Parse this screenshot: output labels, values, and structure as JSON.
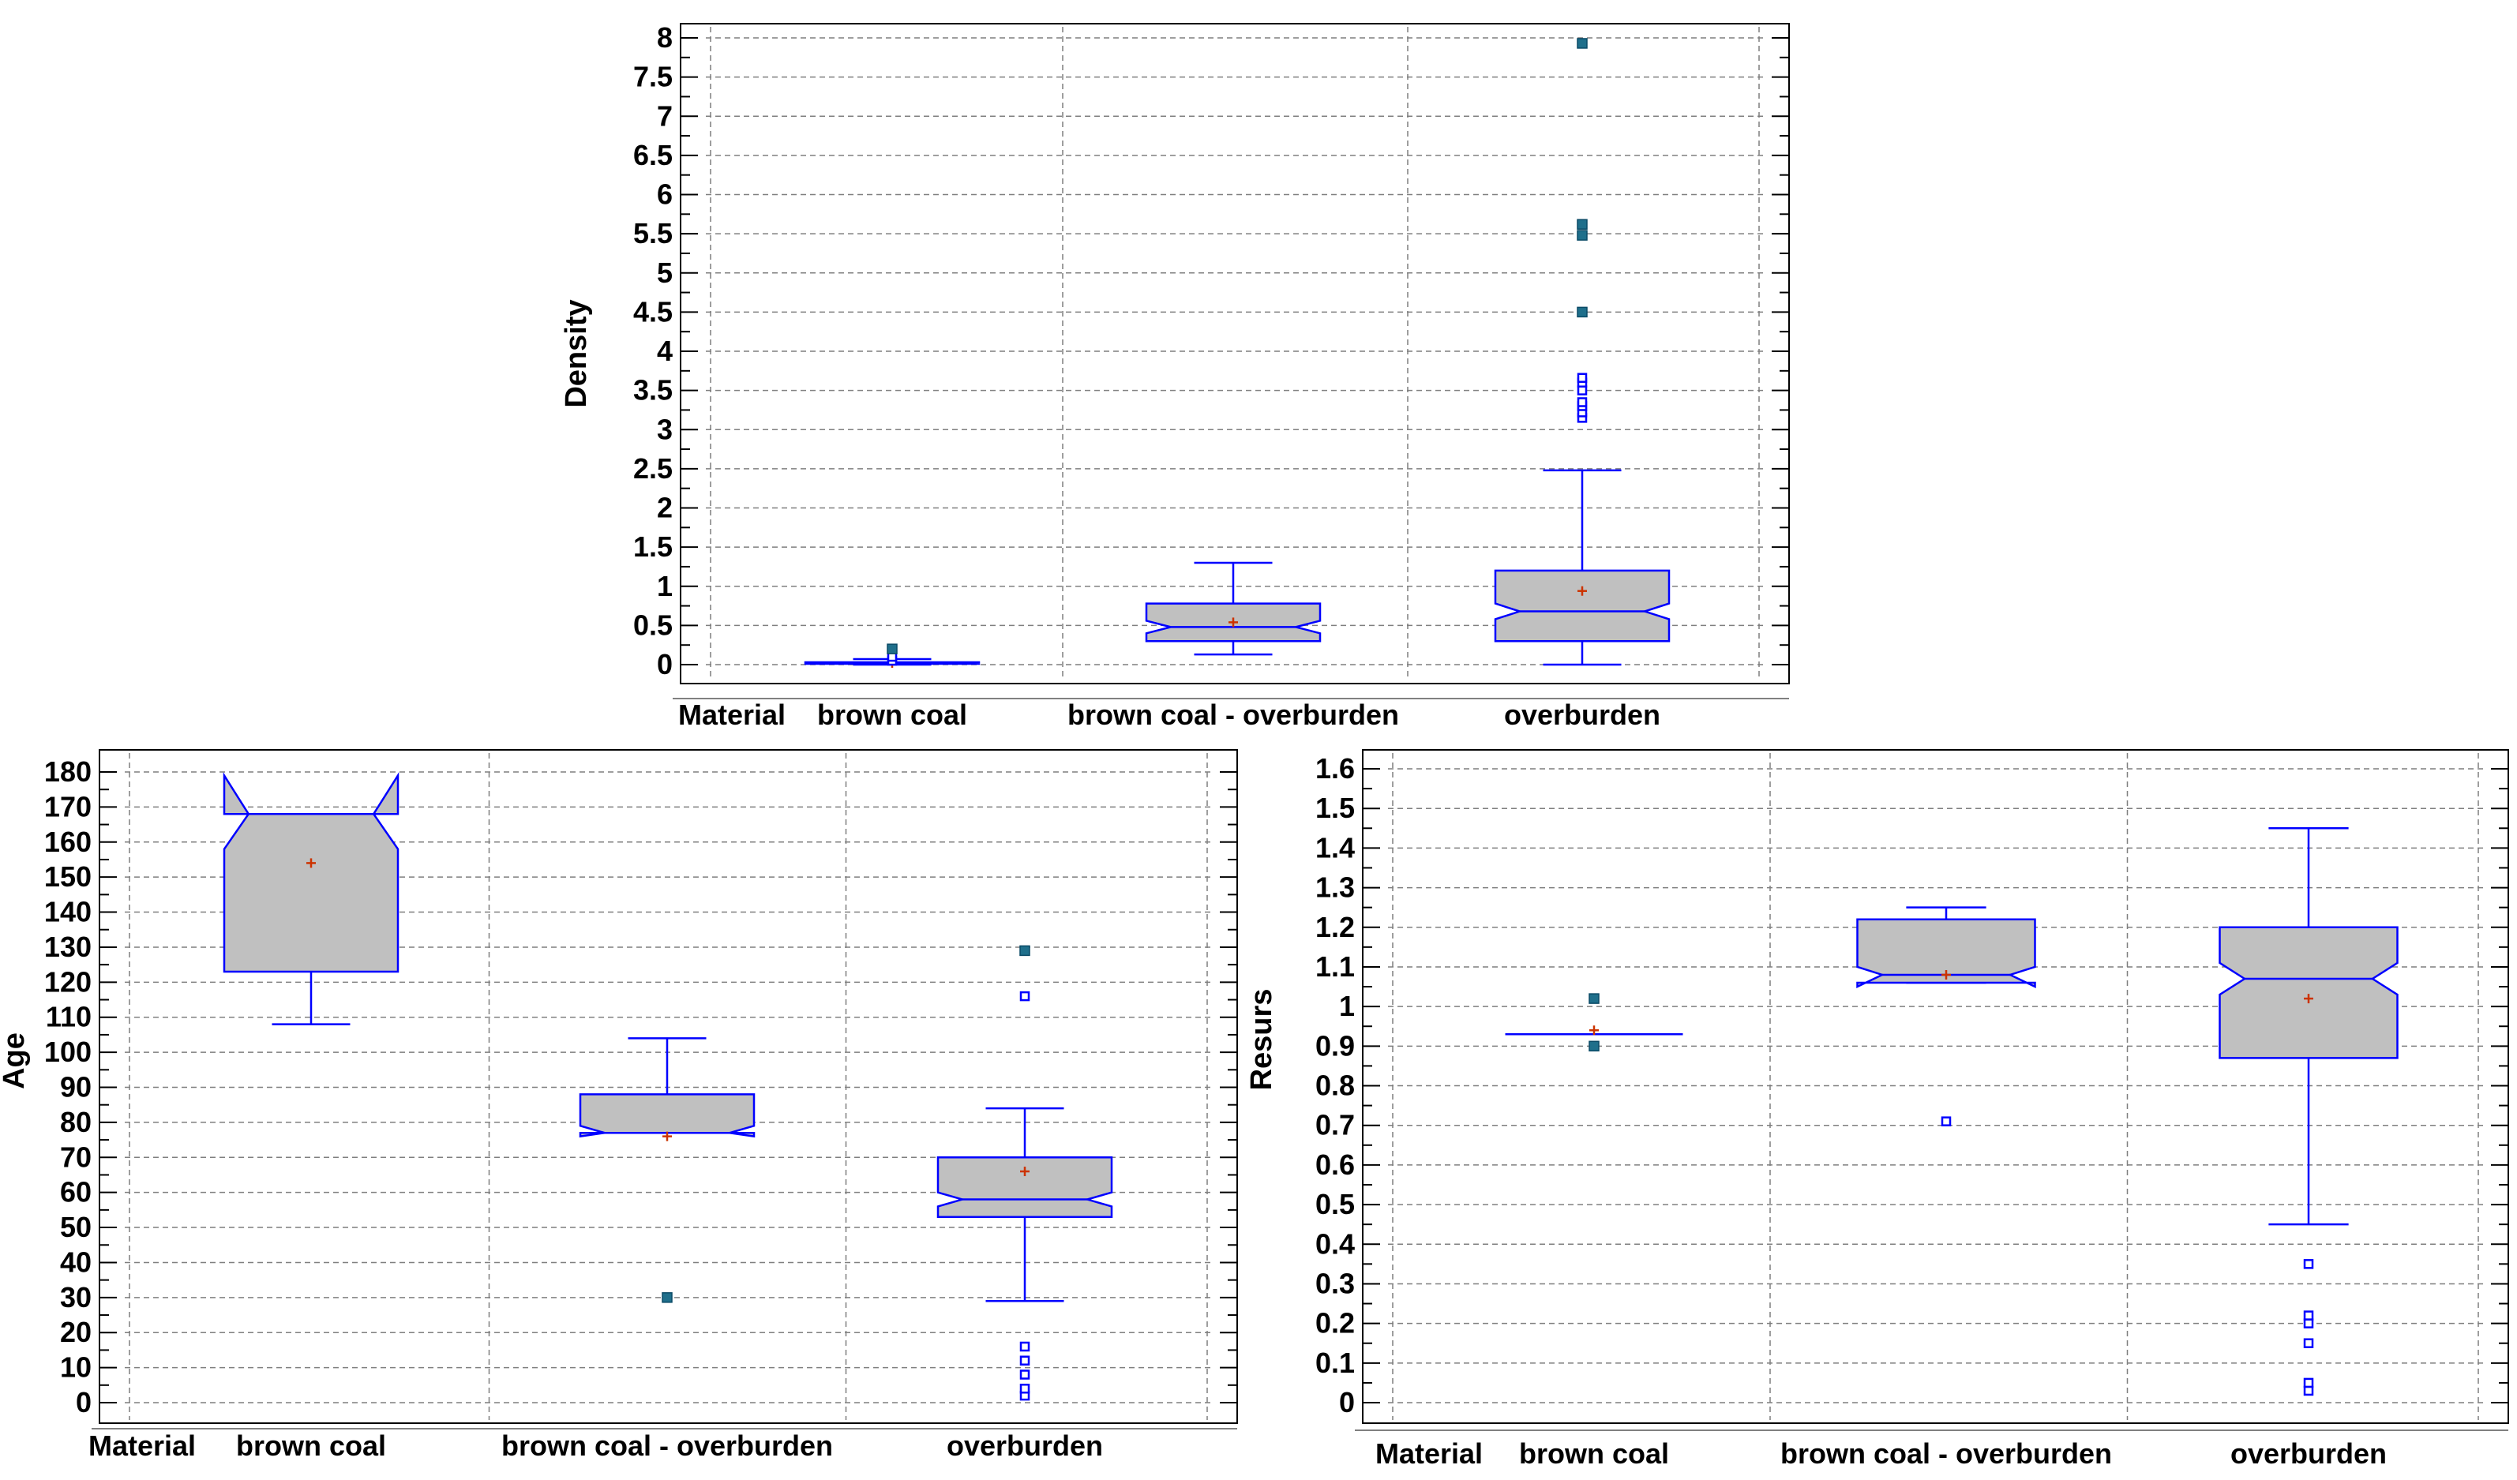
{
  "colors": {
    "box_fill": "#c0c0c0",
    "box_stroke": "#0000ff",
    "whisker": "#0000ff",
    "mean_marker": "#cc3300",
    "outlier_far": "#1f6f8b",
    "outlier_near": "#0000ff",
    "grid": "#7f7f7f",
    "frame": "#000000"
  },
  "chart_data": [
    {
      "type": "box",
      "id": "density",
      "ylabel": "Density",
      "xlabel_prefix": "Material",
      "categories": [
        "brown coal",
        "brown coal - overburden",
        "overburden"
      ],
      "ylim": [
        0,
        8
      ],
      "yticks": [
        0,
        0.5,
        1,
        1.5,
        2,
        2.5,
        3,
        3.5,
        4,
        4.5,
        5,
        5.5,
        6,
        6.5,
        7,
        7.5,
        8
      ],
      "ytick_labels": [
        "0",
        "0.5",
        "1",
        "1.5",
        "2",
        "2.5",
        "3",
        "3.5",
        "4",
        "4.5",
        "5",
        "5.5",
        "6",
        "6.5",
        "7",
        "7.5",
        "8"
      ],
      "boxes": [
        {
          "category": "brown coal",
          "whisker_low": 0.0,
          "q1": 0.01,
          "median": 0.02,
          "q3": 0.03,
          "whisker_high": 0.07,
          "notch_low": 0.015,
          "notch_high": 0.025,
          "mean": 0.02,
          "outliers_near": [
            0.05,
            0.1
          ],
          "outliers_far": [
            0.2
          ]
        },
        {
          "category": "brown coal - overburden",
          "whisker_low": 0.13,
          "q1": 0.3,
          "median": 0.48,
          "q3": 0.78,
          "whisker_high": 1.3,
          "notch_low": 0.4,
          "notch_high": 0.56,
          "mean": 0.54,
          "outliers_near": [],
          "outliers_far": []
        },
        {
          "category": "overburden",
          "whisker_low": 0.0,
          "q1": 0.3,
          "median": 0.68,
          "q3": 1.2,
          "whisker_high": 2.48,
          "notch_low": 0.58,
          "notch_high": 0.78,
          "mean": 0.94,
          "outliers_near": [
            3.15,
            3.22,
            3.3,
            3.35,
            3.5,
            3.6,
            3.66
          ],
          "outliers_far": [
            4.5,
            5.48,
            5.62,
            7.93
          ]
        }
      ]
    },
    {
      "type": "box",
      "id": "age",
      "ylabel": "Age",
      "xlabel_prefix": "Material",
      "categories": [
        "brown coal",
        "brown coal - overburden",
        "overburden"
      ],
      "ylim": [
        0,
        180
      ],
      "yticks": [
        0,
        10,
        20,
        30,
        40,
        50,
        60,
        70,
        80,
        90,
        100,
        110,
        120,
        130,
        140,
        150,
        160,
        170,
        180
      ],
      "ytick_labels": [
        "0",
        "10",
        "20",
        "30",
        "40",
        "50",
        "60",
        "70",
        "80",
        "90",
        "100",
        "110",
        "120",
        "130",
        "140",
        "150",
        "160",
        "170",
        "180"
      ],
      "boxes": [
        {
          "category": "brown coal",
          "whisker_low": 108,
          "q1": 123,
          "median": 168,
          "q3": 168,
          "whisker_high": 168,
          "notch_low": 158,
          "notch_high": 179,
          "mean": 154,
          "outliers_near": [],
          "outliers_far": []
        },
        {
          "category": "brown coal - overburden",
          "whisker_low": 77,
          "q1": 77,
          "median": 77,
          "q3": 88,
          "whisker_high": 104,
          "notch_low": 76,
          "notch_high": 79,
          "mean": 76,
          "outliers_near": [],
          "outliers_far": [
            30
          ]
        },
        {
          "category": "overburden",
          "whisker_low": 29,
          "q1": 53,
          "median": 58,
          "q3": 70,
          "whisker_high": 84,
          "notch_low": 56,
          "notch_high": 60,
          "mean": 66,
          "outliers_near": [
            2,
            4,
            8,
            12,
            16,
            116
          ],
          "outliers_far": [
            129
          ]
        }
      ]
    },
    {
      "type": "box",
      "id": "resurs",
      "ylabel": "Resurs",
      "xlabel_prefix": "Material",
      "categories": [
        "brown coal",
        "brown coal - overburden",
        "overburden"
      ],
      "ylim": [
        0,
        1.6
      ],
      "yticks": [
        0,
        0.1,
        0.2,
        0.3,
        0.4,
        0.5,
        0.6,
        0.7,
        0.8,
        0.9,
        1,
        1.1,
        1.2,
        1.3,
        1.4,
        1.5,
        1.6
      ],
      "ytick_labels": [
        "0",
        "0.1",
        "0.2",
        "0.3",
        "0.4",
        "0.5",
        "0.6",
        "0.7",
        "0.8",
        "0.9",
        "1",
        "1.1",
        "1.2",
        "1.3",
        "1.4",
        "1.5",
        "1.6"
      ],
      "boxes": [
        {
          "category": "brown coal",
          "whisker_low": 0.93,
          "q1": 0.93,
          "median": 0.93,
          "q3": 0.93,
          "whisker_high": 0.93,
          "notch_low": 0.93,
          "notch_high": 0.93,
          "mean": 0.94,
          "outliers_near": [],
          "outliers_far": [
            0.9,
            1.02
          ]
        },
        {
          "category": "brown coal - overburden",
          "whisker_low": 1.06,
          "q1": 1.06,
          "median": 1.08,
          "q3": 1.22,
          "whisker_high": 1.25,
          "notch_low": 1.05,
          "notch_high": 1.1,
          "mean": 1.08,
          "outliers_near": [
            0.71
          ],
          "outliers_far": []
        },
        {
          "category": "overburden",
          "whisker_low": 0.45,
          "q1": 0.87,
          "median": 1.07,
          "q3": 1.2,
          "whisker_high": 1.45,
          "notch_low": 1.03,
          "notch_high": 1.11,
          "mean": 1.02,
          "outliers_near": [
            0.03,
            0.05,
            0.15,
            0.2,
            0.22,
            0.35
          ],
          "outliers_far": []
        }
      ]
    }
  ]
}
